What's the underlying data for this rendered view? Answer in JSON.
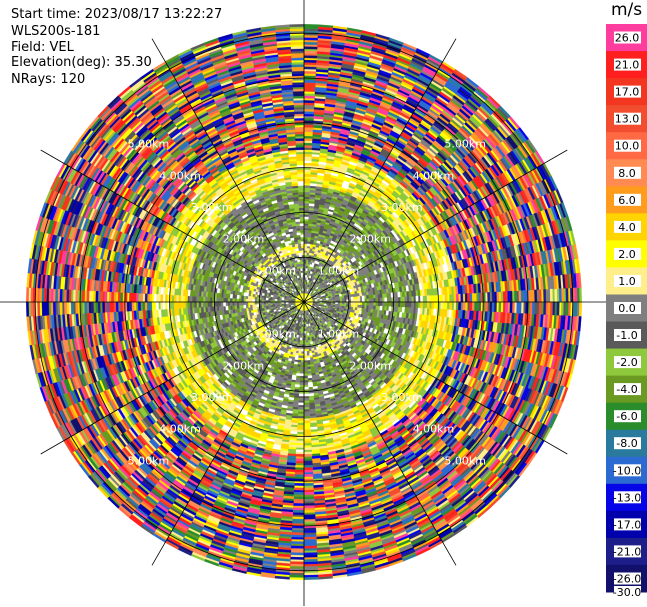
{
  "header": {
    "start_time": "Start time: 2023/08/17 13:22:27",
    "instrument": "WLS200s-181",
    "field": "Field: VEL",
    "elevation": "Elevation(deg): 35.30",
    "nrays": "NRays: 120"
  },
  "chart_data": {
    "type": "heatmap",
    "projection": "polar PPI",
    "field": "VEL",
    "unit": "m/s",
    "n_rays": 120,
    "max_range_km": 6.2,
    "range_ring_labels": [
      "1.00km",
      "2.00km",
      "3.00km",
      "4.00km",
      "5.00km"
    ],
    "colorbar": {
      "ticks": [
        "26.0",
        "21.0",
        "17.0",
        "13.0",
        "10.0",
        "8.0",
        "6.0",
        "4.0",
        "2.0",
        "1.0",
        "0.0",
        "-1.0",
        "-2.0",
        "-4.0",
        "-6.0",
        "-8.0",
        "-10.0",
        "-13.0",
        "-17.0",
        "-21.0",
        "-26.0",
        "-30.0"
      ],
      "colors": [
        "#ff3d9e",
        "#ff1f1f",
        "#f2361f",
        "#f24d2e",
        "#ff6a45",
        "#ff8a52",
        "#ff9c1e",
        "#ffd400",
        "#ffff00",
        "#ffee8a",
        "#7f7f7f",
        "#5a5a5a",
        "#8ec83c",
        "#6b9a23",
        "#2b8c2b",
        "#2a7a9e",
        "#2b6bd1",
        "#0505e8",
        "#0000ad",
        "#1e1e8a",
        "#11116b"
      ]
    },
    "velocity_pattern": [
      {
        "range_km": [
          0.0,
          0.22
        ],
        "values": [
          "2.0"
        ]
      },
      {
        "range_km": [
          0.22,
          1.05
        ],
        "values": [
          "0.0",
          "-1.0",
          "-2.0"
        ]
      },
      {
        "range_km": [
          1.05,
          1.3
        ],
        "values": [
          "1.0",
          "2.0",
          "0.0"
        ]
      },
      {
        "range_km": [
          1.3,
          2.6
        ],
        "values": [
          "0.0",
          "-1.0",
          "-2.0",
          "-4.0"
        ]
      },
      {
        "range_km": [
          2.6,
          3.4
        ],
        "values": [
          "2.0",
          "4.0",
          "1.0",
          "-2.0"
        ]
      },
      {
        "range_km": [
          3.4,
          6.2
        ],
        "values": "noise"
      }
    ]
  }
}
